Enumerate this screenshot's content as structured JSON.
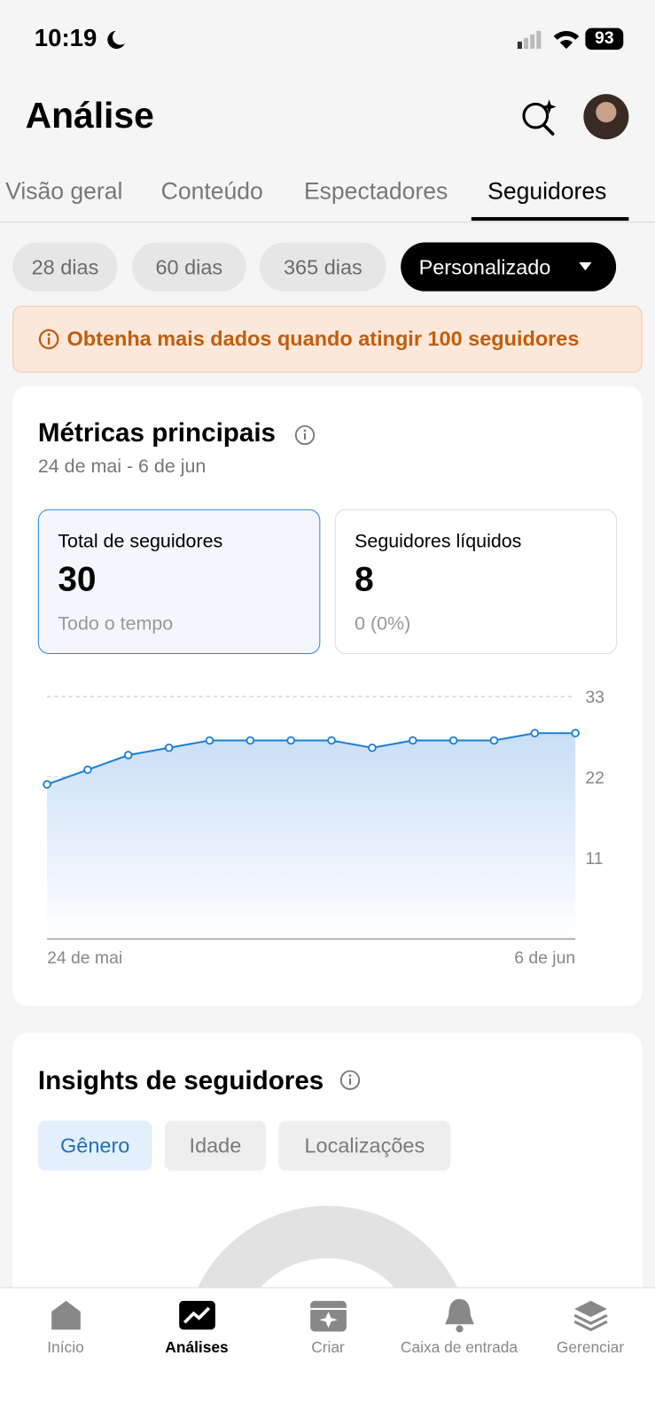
{
  "status_bar": {
    "time": "10:19",
    "battery": "93"
  },
  "header": {
    "title": "Análise"
  },
  "tabs": [
    "Visão geral",
    "Conteúdo",
    "Espectadores",
    "Seguidores"
  ],
  "periods": [
    "28 dias",
    "60 dias",
    "365 dias",
    "Personalizado"
  ],
  "banner": {
    "text": "Obtenha mais dados quando atingir 100 seguidores"
  },
  "metrics": {
    "title": "Métricas principais",
    "date_range": "24 de mai - 6 de jun",
    "cards": [
      {
        "label": "Total de seguidores",
        "value": 30,
        "note": "Todo o tempo"
      },
      {
        "label": "Seguidores líquidos",
        "value": 8,
        "note": "0 (0%)"
      }
    ]
  },
  "chart_data": {
    "type": "line",
    "categories": [
      "24 de mai",
      null,
      null,
      null,
      null,
      null,
      null,
      null,
      null,
      null,
      null,
      null,
      null,
      "6 de jun"
    ],
    "values": [
      21,
      23,
      25,
      26,
      27,
      27,
      27,
      27,
      26,
      27,
      27,
      27,
      28,
      28
    ],
    "color": "#1a7fd4",
    "ylim": [
      0,
      33
    ],
    "yticks": [
      11,
      22,
      33
    ],
    "grid": true
  },
  "insights": {
    "title": "Insights de seguidores",
    "filters": [
      "Gênero",
      "Idade",
      "Localizações"
    ]
  },
  "nav": [
    "Início",
    "Análises",
    "Criar",
    "Caixa de entrada",
    "Gerenciar"
  ]
}
